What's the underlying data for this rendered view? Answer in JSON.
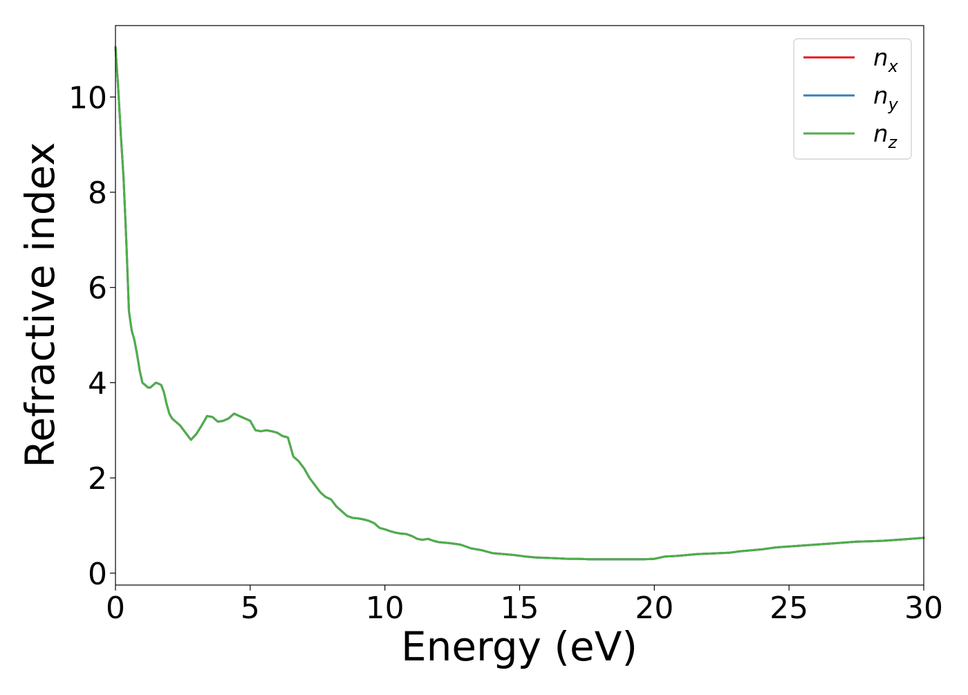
{
  "chart_data": {
    "type": "line",
    "xlabel": "Energy (eV)",
    "ylabel": "Refractive index",
    "xlim": [
      0,
      30
    ],
    "ylim": [
      -0.25,
      11.5
    ],
    "xticks": [
      0,
      5,
      10,
      15,
      20,
      25,
      30
    ],
    "xtick_labels": [
      "0",
      "5",
      "10",
      "15",
      "20",
      "25",
      "30"
    ],
    "yticks": [
      0,
      2,
      4,
      6,
      8,
      10
    ],
    "ytick_labels": [
      "0",
      "2",
      "4",
      "6",
      "8",
      "10"
    ],
    "grid": false,
    "legend_position": "top-right",
    "x": [
      0,
      0.1,
      0.2,
      0.3,
      0.4,
      0.5,
      0.6,
      0.7,
      0.8,
      0.9,
      1.0,
      1.1,
      1.2,
      1.3,
      1.4,
      1.5,
      1.6,
      1.7,
      1.8,
      1.9,
      2.0,
      2.1,
      2.2,
      2.4,
      2.6,
      2.8,
      3.0,
      3.2,
      3.4,
      3.6,
      3.8,
      4.0,
      4.2,
      4.4,
      4.6,
      4.8,
      5.0,
      5.2,
      5.4,
      5.6,
      5.8,
      6.0,
      6.2,
      6.4,
      6.6,
      6.8,
      7.0,
      7.2,
      7.4,
      7.6,
      7.8,
      8.0,
      8.2,
      8.4,
      8.6,
      8.8,
      9.0,
      9.2,
      9.4,
      9.6,
      9.8,
      10.0,
      10.2,
      10.4,
      10.6,
      10.8,
      11.0,
      11.2,
      11.4,
      11.6,
      11.8,
      12.0,
      12.4,
      12.8,
      13.2,
      13.6,
      14.0,
      14.4,
      14.8,
      15.2,
      15.6,
      16.0,
      16.4,
      16.8,
      17.2,
      17.6,
      18.0,
      18.4,
      18.8,
      19.2,
      19.6,
      20.0,
      20.4,
      20.8,
      21.2,
      21.6,
      22.0,
      22.4,
      22.8,
      23.2,
      23.6,
      24.0,
      24.5,
      25.0,
      25.5,
      26.0,
      26.5,
      27.0,
      27.5,
      28.0,
      28.5,
      29.0,
      29.5,
      30.0
    ],
    "series": [
      {
        "name": "n_x",
        "color": "#e41a1c",
        "values": [
          11.05,
          10.2,
          9.2,
          8.3,
          7.0,
          5.5,
          5.1,
          4.9,
          4.6,
          4.25,
          4.0,
          3.95,
          3.9,
          3.9,
          3.95,
          4.0,
          3.98,
          3.95,
          3.8,
          3.55,
          3.35,
          3.25,
          3.2,
          3.1,
          2.95,
          2.8,
          2.92,
          3.1,
          3.3,
          3.28,
          3.18,
          3.2,
          3.25,
          3.35,
          3.3,
          3.25,
          3.2,
          3.0,
          2.98,
          3.0,
          2.98,
          2.95,
          2.88,
          2.85,
          2.45,
          2.35,
          2.2,
          2.0,
          1.85,
          1.7,
          1.6,
          1.55,
          1.4,
          1.3,
          1.2,
          1.16,
          1.15,
          1.13,
          1.1,
          1.05,
          0.95,
          0.92,
          0.88,
          0.85,
          0.83,
          0.82,
          0.78,
          0.72,
          0.7,
          0.72,
          0.68,
          0.65,
          0.63,
          0.6,
          0.52,
          0.48,
          0.42,
          0.4,
          0.38,
          0.35,
          0.33,
          0.32,
          0.31,
          0.3,
          0.3,
          0.29,
          0.29,
          0.29,
          0.29,
          0.29,
          0.29,
          0.3,
          0.35,
          0.36,
          0.38,
          0.4,
          0.41,
          0.42,
          0.43,
          0.46,
          0.48,
          0.5,
          0.54,
          0.56,
          0.58,
          0.6,
          0.62,
          0.64,
          0.66,
          0.67,
          0.68,
          0.7,
          0.72,
          0.74
        ]
      },
      {
        "name": "n_y",
        "color": "#377eb8",
        "values": [
          11.05,
          10.2,
          9.2,
          8.3,
          7.0,
          5.5,
          5.1,
          4.9,
          4.6,
          4.25,
          4.0,
          3.95,
          3.9,
          3.9,
          3.95,
          4.0,
          3.98,
          3.95,
          3.8,
          3.55,
          3.35,
          3.25,
          3.2,
          3.1,
          2.95,
          2.8,
          2.92,
          3.1,
          3.3,
          3.28,
          3.18,
          3.2,
          3.25,
          3.35,
          3.3,
          3.25,
          3.2,
          3.0,
          2.98,
          3.0,
          2.98,
          2.95,
          2.88,
          2.85,
          2.45,
          2.35,
          2.2,
          2.0,
          1.85,
          1.7,
          1.6,
          1.55,
          1.4,
          1.3,
          1.2,
          1.16,
          1.15,
          1.13,
          1.1,
          1.05,
          0.95,
          0.92,
          0.88,
          0.85,
          0.83,
          0.82,
          0.78,
          0.72,
          0.7,
          0.72,
          0.68,
          0.65,
          0.63,
          0.6,
          0.52,
          0.48,
          0.42,
          0.4,
          0.38,
          0.35,
          0.33,
          0.32,
          0.31,
          0.3,
          0.3,
          0.29,
          0.29,
          0.29,
          0.29,
          0.29,
          0.29,
          0.3,
          0.35,
          0.36,
          0.38,
          0.4,
          0.41,
          0.42,
          0.43,
          0.46,
          0.48,
          0.5,
          0.54,
          0.56,
          0.58,
          0.6,
          0.62,
          0.64,
          0.66,
          0.67,
          0.68,
          0.7,
          0.72,
          0.74
        ]
      },
      {
        "name": "n_z",
        "color": "#4daf4a",
        "values": [
          11.05,
          10.2,
          9.2,
          8.3,
          7.0,
          5.5,
          5.1,
          4.9,
          4.6,
          4.25,
          4.0,
          3.95,
          3.9,
          3.9,
          3.95,
          4.0,
          3.98,
          3.95,
          3.8,
          3.55,
          3.35,
          3.25,
          3.2,
          3.1,
          2.95,
          2.8,
          2.92,
          3.1,
          3.3,
          3.28,
          3.18,
          3.2,
          3.25,
          3.35,
          3.3,
          3.25,
          3.2,
          3.0,
          2.98,
          3.0,
          2.98,
          2.95,
          2.88,
          2.85,
          2.45,
          2.35,
          2.2,
          2.0,
          1.85,
          1.7,
          1.6,
          1.55,
          1.4,
          1.3,
          1.2,
          1.16,
          1.15,
          1.13,
          1.1,
          1.05,
          0.95,
          0.92,
          0.88,
          0.85,
          0.83,
          0.82,
          0.78,
          0.72,
          0.7,
          0.72,
          0.68,
          0.65,
          0.63,
          0.6,
          0.52,
          0.48,
          0.42,
          0.4,
          0.38,
          0.35,
          0.33,
          0.32,
          0.31,
          0.3,
          0.3,
          0.29,
          0.29,
          0.29,
          0.29,
          0.29,
          0.29,
          0.3,
          0.35,
          0.36,
          0.38,
          0.4,
          0.41,
          0.42,
          0.43,
          0.46,
          0.48,
          0.5,
          0.54,
          0.56,
          0.58,
          0.6,
          0.62,
          0.64,
          0.66,
          0.67,
          0.68,
          0.7,
          0.72,
          0.74
        ]
      }
    ],
    "legend": [
      {
        "base": "n",
        "sub": "x",
        "color": "#e41a1c"
      },
      {
        "base": "n",
        "sub": "y",
        "color": "#377eb8"
      },
      {
        "base": "n",
        "sub": "z",
        "color": "#4daf4a"
      }
    ]
  }
}
